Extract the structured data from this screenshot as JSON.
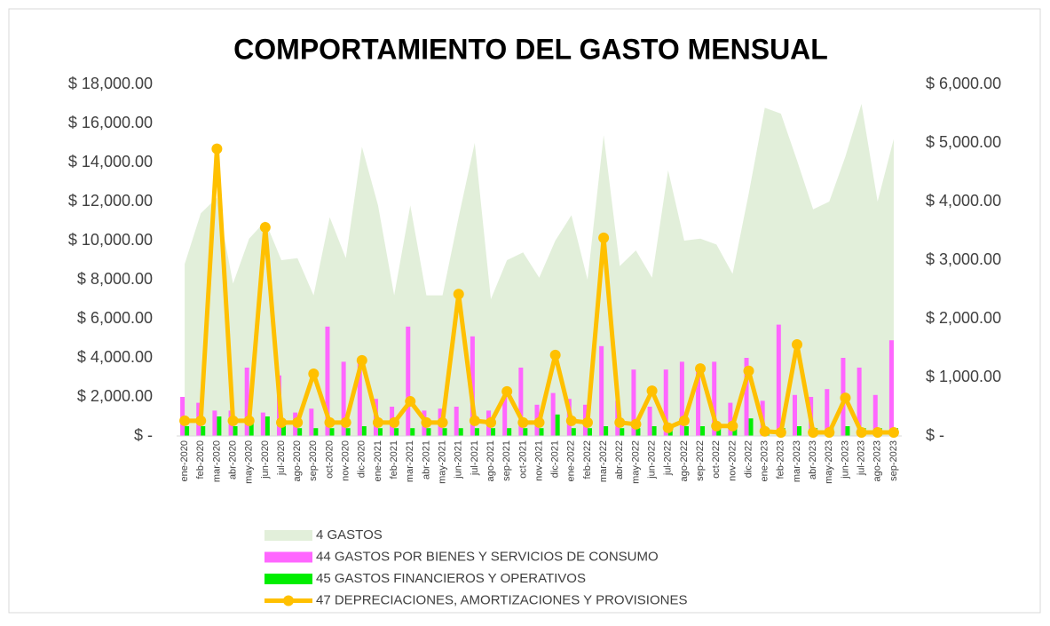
{
  "chart_data": {
    "type": "combo",
    "title": "COMPORTAMIENTO DEL GASTO MENSUAL",
    "categories": [
      "ene-2020",
      "feb-2020",
      "mar-2020",
      "abr-2020",
      "may-2020",
      "jun-2020",
      "jul-2020",
      "ago-2020",
      "sep-2020",
      "oct-2020",
      "nov-2020",
      "dic-2020",
      "ene-2021",
      "feb-2021",
      "mar-2021",
      "abr-2021",
      "may-2021",
      "jun-2021",
      "jul-2021",
      "ago-2021",
      "sep-2021",
      "oct-2021",
      "nov-2021",
      "dic-2021",
      "ene-2022",
      "feb-2022",
      "mar-2022",
      "abr-2022",
      "may-2022",
      "jun-2022",
      "jul-2022",
      "ago-2022",
      "sep-2022",
      "oct-2022",
      "nov-2022",
      "dic-2022",
      "ene-2023",
      "feb-2023",
      "mar-2023",
      "abr-2023",
      "may-2023",
      "jun-2023",
      "jul-2023",
      "ago-2023",
      "sep-2023"
    ],
    "series": [
      {
        "name": "4 GASTOS",
        "type": "area",
        "color": "#e2efda",
        "values": [
          8800,
          11400,
          12200,
          7800,
          10100,
          11000,
          9000,
          9100,
          7200,
          11200,
          9100,
          14800,
          11800,
          7200,
          11800,
          7200,
          7200,
          11200,
          15000,
          7000,
          9000,
          9400,
          8100,
          10000,
          11300,
          8000,
          15400,
          8700,
          9500,
          8100,
          13600,
          10000,
          10100,
          9800,
          8300,
          12400,
          16800,
          16500,
          14100,
          11600,
          12000,
          14300,
          17000,
          12000,
          15200
        ]
      },
      {
        "name": "44 GASTOS POR BIENES Y SERVICIOS DE CONSUMO",
        "type": "bar",
        "color": "#ff66ff",
        "values": [
          2000,
          1700,
          1300,
          1300,
          3500,
          1200,
          3100,
          1200,
          1400,
          5600,
          3800,
          3800,
          1900,
          1500,
          5600,
          1300,
          1400,
          1500,
          5100,
          1300,
          2100,
          3500,
          1600,
          2200,
          1900,
          1600,
          4600,
          1800,
          3400,
          1500,
          3400,
          3800,
          3600,
          3800,
          1700,
          4000,
          1800,
          5700,
          2100,
          2000,
          2400,
          4000,
          3500,
          2100,
          4900
        ]
      },
      {
        "name": "45 GASTOS FINANCIEROS Y OPERATIVOS",
        "type": "bar",
        "color": "#00ee00",
        "values": [
          500,
          500,
          1000,
          500,
          900,
          1000,
          500,
          400,
          400,
          400,
          400,
          500,
          400,
          400,
          400,
          400,
          400,
          400,
          400,
          400,
          400,
          400,
          400,
          1100,
          400,
          400,
          500,
          400,
          400,
          500,
          400,
          500,
          500,
          400,
          400,
          900,
          400,
          400,
          500,
          400,
          400,
          500,
          400,
          400,
          400
        ]
      },
      {
        "name": "47 DEPRECIACIONES, AMORTIZACIONES Y PROVISIONES",
        "type": "line",
        "axis": "y2",
        "color": "#ffc000",
        "values": [
          260,
          260,
          4900,
          260,
          260,
          3560,
          230,
          230,
          1060,
          230,
          230,
          1290,
          230,
          230,
          590,
          230,
          230,
          2420,
          260,
          230,
          760,
          230,
          230,
          1380,
          260,
          230,
          3380,
          230,
          200,
          770,
          140,
          260,
          1150,
          170,
          170,
          1110,
          80,
          60,
          1560,
          60,
          60,
          650,
          60,
          60,
          60
        ]
      }
    ],
    "ylim": [
      0,
      18000
    ],
    "yticks": [
      {
        "value": 0,
        "label": "$ -"
      },
      {
        "value": 2000,
        "label": "$ 2,000.00"
      },
      {
        "value": 4000,
        "label": "$ 4,000.00"
      },
      {
        "value": 6000,
        "label": "$ 6,000.00"
      },
      {
        "value": 8000,
        "label": "$ 8,000.00"
      },
      {
        "value": 10000,
        "label": "$ 10,000.00"
      },
      {
        "value": 12000,
        "label": "$ 12,000.00"
      },
      {
        "value": 14000,
        "label": "$ 14,000.00"
      },
      {
        "value": 16000,
        "label": "$ 16,000.00"
      },
      {
        "value": 18000,
        "label": "$ 18,000.00"
      }
    ],
    "y2lim": [
      0,
      6000
    ],
    "y2ticks": [
      {
        "value": 0,
        "label": "$ -"
      },
      {
        "value": 1000,
        "label": "$ 1,000.00"
      },
      {
        "value": 2000,
        "label": "$ 2,000.00"
      },
      {
        "value": 3000,
        "label": "$ 3,000.00"
      },
      {
        "value": 4000,
        "label": "$ 4,000.00"
      },
      {
        "value": 5000,
        "label": "$ 5,000.00"
      },
      {
        "value": 6000,
        "label": "$ 6,000.00"
      }
    ],
    "legend": "bottom"
  }
}
